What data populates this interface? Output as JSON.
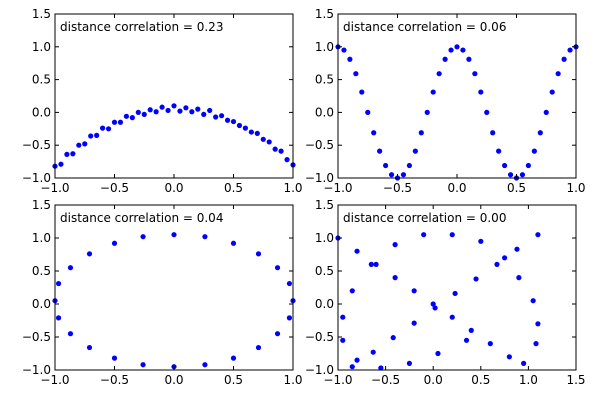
{
  "chart_data": [
    {
      "type": "scatter",
      "annotation": "distance correlation = 0.23",
      "color": "#0000ff",
      "x": [
        -1,
        -0.95,
        -0.9,
        -0.85,
        -0.8,
        -0.75,
        -0.7,
        -0.65,
        -0.6,
        -0.55,
        -0.5,
        -0.45,
        -0.4,
        -0.35,
        -0.3,
        -0.25,
        -0.2,
        -0.15,
        -0.1,
        -0.05,
        0,
        0.05,
        0.1,
        0.15,
        0.2,
        0.25,
        0.3,
        0.35,
        0.4,
        0.45,
        0.5,
        0.55,
        0.6,
        0.65,
        0.7,
        0.75,
        0.8,
        0.85,
        0.9,
        0.95,
        1
      ],
      "y": [
        -0.82,
        -0.79,
        -0.64,
        -0.63,
        -0.5,
        -0.48,
        -0.36,
        -0.35,
        -0.24,
        -0.25,
        -0.15,
        -0.15,
        -0.06,
        -0.08,
        0,
        -0.03,
        0.04,
        0.01,
        0.08,
        0.03,
        0.1,
        0.02,
        0.07,
        0.01,
        0.05,
        -0.03,
        0.03,
        -0.07,
        -0.05,
        -0.12,
        -0.14,
        -0.2,
        -0.24,
        -0.3,
        -0.32,
        -0.41,
        -0.45,
        -0.56,
        -0.59,
        -0.72,
        -0.8
      ],
      "xlim": [
        -1,
        1
      ],
      "ylim": [
        -1,
        1.5
      ],
      "xticks": [
        {
          "value": -1,
          "label": "−1.0"
        },
        {
          "value": -0.5,
          "label": "−0.5"
        },
        {
          "value": 0,
          "label": "0.0"
        },
        {
          "value": 0.5,
          "label": "0.5"
        },
        {
          "value": 1,
          "label": "1.0"
        }
      ],
      "yticks": [
        {
          "value": -1,
          "label": "−1.0"
        },
        {
          "value": -0.5,
          "label": "−0.5"
        },
        {
          "value": 0,
          "label": "0.0"
        },
        {
          "value": 0.5,
          "label": "0.5"
        },
        {
          "value": 1,
          "label": "1.0"
        },
        {
          "value": 1.5,
          "label": "1.5"
        }
      ]
    },
    {
      "type": "scatter",
      "annotation": "distance correlation = 0.06",
      "color": "#0000ff",
      "x": [
        -1,
        -0.95,
        -0.9,
        -0.85,
        -0.8,
        -0.75,
        -0.7,
        -0.65,
        -0.6,
        -0.55,
        -0.5,
        -0.45,
        -0.4,
        -0.35,
        -0.3,
        -0.25,
        -0.2,
        -0.15,
        -0.1,
        -0.05,
        0,
        0.05,
        0.1,
        0.15,
        0.2,
        0.25,
        0.3,
        0.35,
        0.4,
        0.45,
        0.5,
        0.55,
        0.6,
        0.65,
        0.7,
        0.75,
        0.8,
        0.85,
        0.9,
        0.95,
        1
      ],
      "y": [
        1,
        0.95,
        0.81,
        0.59,
        0.31,
        0,
        -0.31,
        -0.59,
        -0.81,
        -0.95,
        -1,
        -0.95,
        -0.81,
        -0.59,
        -0.31,
        0,
        0.31,
        0.59,
        0.81,
        0.95,
        1,
        0.95,
        0.81,
        0.59,
        0.31,
        0,
        -0.31,
        -0.59,
        -0.81,
        -0.95,
        -1,
        -0.95,
        -0.81,
        -0.59,
        -0.31,
        0,
        0.31,
        0.59,
        0.81,
        0.95,
        1
      ],
      "xlim": [
        -1,
        1
      ],
      "ylim": [
        -1,
        1.5
      ],
      "xticks": [
        {
          "value": -1,
          "label": "−1.0"
        },
        {
          "value": -0.5,
          "label": "−0.5"
        },
        {
          "value": 0,
          "label": "0.0"
        },
        {
          "value": 0.5,
          "label": "0.5"
        },
        {
          "value": 1,
          "label": "1.0"
        }
      ],
      "yticks": [
        {
          "value": -1,
          "label": "−1.0"
        },
        {
          "value": -0.5,
          "label": "−0.5"
        },
        {
          "value": 0,
          "label": "0.0"
        },
        {
          "value": 0.5,
          "label": "0.5"
        },
        {
          "value": 1,
          "label": "1.0"
        },
        {
          "value": 1.5,
          "label": "1.5"
        }
      ]
    },
    {
      "type": "scatter",
      "annotation": "distance correlation = 0.04",
      "color": "#0000ff",
      "x": [
        1,
        0.97,
        0.87,
        0.71,
        0.5,
        0.26,
        0,
        -0.26,
        -0.5,
        -0.71,
        -0.87,
        -0.97,
        -1,
        -0.97,
        -0.87,
        -0.71,
        -0.5,
        -0.26,
        0,
        0.26,
        0.5,
        0.71,
        0.87,
        0.97
      ],
      "y": [
        0.05,
        0.31,
        0.55,
        0.76,
        0.92,
        1.02,
        1.05,
        1.02,
        0.92,
        0.76,
        0.55,
        0.31,
        0.05,
        -0.21,
        -0.45,
        -0.66,
        -0.82,
        -0.92,
        -0.95,
        -0.92,
        -0.82,
        -0.66,
        -0.45,
        -0.21
      ],
      "xlim": [
        -1,
        1
      ],
      "ylim": [
        -1,
        1.5
      ],
      "xticks": [
        {
          "value": -1,
          "label": "−1.0"
        },
        {
          "value": -0.5,
          "label": "−0.5"
        },
        {
          "value": 0,
          "label": "0.0"
        },
        {
          "value": 0.5,
          "label": "0.5"
        },
        {
          "value": 1,
          "label": "1.0"
        }
      ],
      "yticks": [
        {
          "value": -1,
          "label": "−1.0"
        },
        {
          "value": -0.5,
          "label": "−0.5"
        },
        {
          "value": 0,
          "label": "0.0"
        },
        {
          "value": 0.5,
          "label": "0.5"
        },
        {
          "value": 1,
          "label": "1.0"
        },
        {
          "value": 1.5,
          "label": "1.5"
        }
      ]
    },
    {
      "type": "scatter",
      "annotation": "distance correlation = 0.00",
      "color": "#0000ff",
      "x": [
        -0.85,
        -0.63,
        -0.42,
        -0.2,
        0.02,
        0.23,
        0.45,
        0.67,
        0.88,
        1.1,
        -1,
        -0.8,
        -0.6,
        -0.4,
        -0.2,
        0,
        0.2,
        0.4,
        0.6,
        0.8,
        0.95,
        1.08,
        1.1,
        1.05,
        0.9,
        0.75,
        0.5,
        0.2,
        -0.1,
        -0.4,
        -0.65,
        -0.85,
        -0.95,
        -0.95,
        -0.8,
        -0.55,
        -0.25,
        0.05,
        0.35
      ],
      "y": [
        -0.95,
        -0.73,
        -0.51,
        -0.29,
        -0.06,
        0.16,
        0.38,
        0.6,
        0.83,
        1.05,
        1,
        0.8,
        0.6,
        0.4,
        0.2,
        0,
        -0.2,
        -0.4,
        -0.6,
        -0.8,
        -0.9,
        -0.6,
        -0.3,
        0.05,
        0.4,
        0.7,
        0.95,
        1.05,
        1.05,
        0.9,
        0.6,
        0.2,
        -0.2,
        -0.55,
        -0.85,
        -0.97,
        -0.9,
        -0.75,
        -0.55
      ],
      "xlim": [
        -1,
        1.5
      ],
      "ylim": [
        -1,
        1.5
      ],
      "xticks": [
        {
          "value": -1,
          "label": "−1.0"
        },
        {
          "value": -0.5,
          "label": "−0.5"
        },
        {
          "value": 0,
          "label": "0.0"
        },
        {
          "value": 0.5,
          "label": "0.5"
        },
        {
          "value": 1,
          "label": "1.0"
        },
        {
          "value": 1.5,
          "label": "1.5"
        }
      ],
      "yticks": [
        {
          "value": -1,
          "label": "−1.0"
        },
        {
          "value": -0.5,
          "label": "−0.5"
        },
        {
          "value": 0,
          "label": "0.0"
        },
        {
          "value": 0.5,
          "label": "0.5"
        },
        {
          "value": 1,
          "label": "1.0"
        },
        {
          "value": 1.5,
          "label": "1.5"
        }
      ]
    }
  ]
}
